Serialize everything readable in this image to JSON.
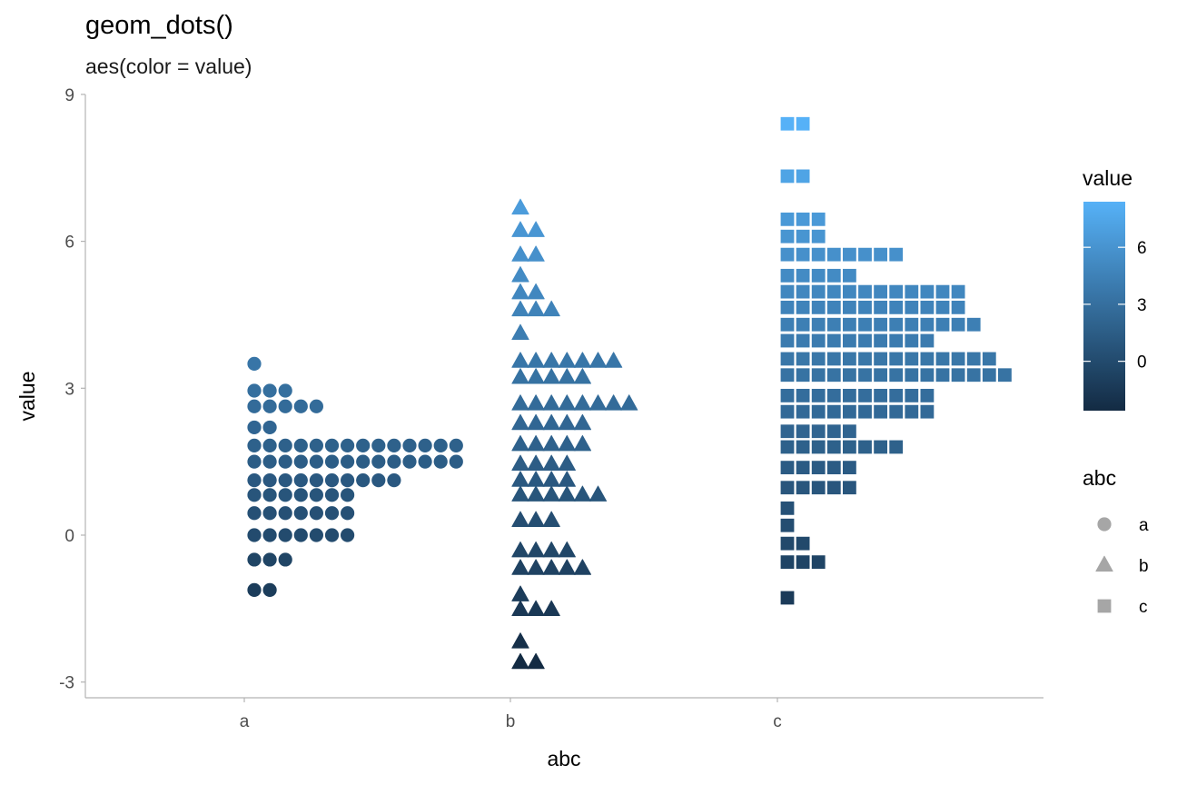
{
  "chart_data": {
    "type": "dotplot",
    "title": "geom_dots()",
    "subtitle": "aes(color = value)",
    "xlabel": "abc",
    "ylabel": "value",
    "categories": [
      "a",
      "b",
      "c"
    ],
    "ylim": [
      -3.3,
      9
    ],
    "yticks": [
      "9",
      "6",
      "3",
      "0",
      "-3"
    ],
    "ytick_values": [
      9,
      6,
      3,
      0,
      -3
    ],
    "grid": false,
    "color_scale": {
      "title": "value",
      "ticks": [
        "6",
        "3",
        "0"
      ],
      "tick_values": [
        6,
        3,
        0
      ],
      "range": [
        -2.6,
        8.4
      ],
      "low_color": "#132B43",
      "high_color": "#56B1F7"
    },
    "shape_legend": {
      "title": "abc",
      "items": [
        {
          "label": "a",
          "shape": "circle"
        },
        {
          "label": "b",
          "shape": "triangle"
        },
        {
          "label": "c",
          "shape": "square"
        }
      ],
      "color": "#a6a6a6"
    },
    "series": [
      {
        "category": "a",
        "shape": "circle",
        "bins": [
          {
            "y": 3.5,
            "count": 1
          },
          {
            "y": 2.95,
            "count": 3
          },
          {
            "y": 2.63,
            "count": 5
          },
          {
            "y": 2.2,
            "count": 2
          },
          {
            "y": 1.83,
            "count": 14
          },
          {
            "y": 1.5,
            "count": 14
          },
          {
            "y": 1.12,
            "count": 10
          },
          {
            "y": 0.82,
            "count": 7
          },
          {
            "y": 0.45,
            "count": 7
          },
          {
            "y": 0.0,
            "count": 7
          },
          {
            "y": -0.5,
            "count": 3
          },
          {
            "y": -1.12,
            "count": 2
          }
        ]
      },
      {
        "category": "b",
        "shape": "triangle",
        "bins": [
          {
            "y": 6.68,
            "count": 1
          },
          {
            "y": 6.22,
            "count": 2
          },
          {
            "y": 5.72,
            "count": 2
          },
          {
            "y": 5.3,
            "count": 1
          },
          {
            "y": 4.95,
            "count": 2
          },
          {
            "y": 4.6,
            "count": 3
          },
          {
            "y": 4.12,
            "count": 1
          },
          {
            "y": 3.55,
            "count": 7
          },
          {
            "y": 3.22,
            "count": 5
          },
          {
            "y": 2.68,
            "count": 8
          },
          {
            "y": 2.28,
            "count": 5
          },
          {
            "y": 1.85,
            "count": 5
          },
          {
            "y": 1.45,
            "count": 4
          },
          {
            "y": 1.12,
            "count": 4
          },
          {
            "y": 0.82,
            "count": 6
          },
          {
            "y": 0.3,
            "count": 3
          },
          {
            "y": -0.32,
            "count": 4
          },
          {
            "y": -0.68,
            "count": 5
          },
          {
            "y": -1.22,
            "count": 1
          },
          {
            "y": -1.52,
            "count": 3
          },
          {
            "y": -2.18,
            "count": 1
          },
          {
            "y": -2.6,
            "count": 2
          }
        ]
      },
      {
        "category": "c",
        "shape": "square",
        "bins": [
          {
            "y": 8.4,
            "count": 2
          },
          {
            "y": 7.33,
            "count": 2
          },
          {
            "y": 6.45,
            "count": 3
          },
          {
            "y": 6.1,
            "count": 3
          },
          {
            "y": 5.73,
            "count": 8
          },
          {
            "y": 5.3,
            "count": 5
          },
          {
            "y": 4.97,
            "count": 12
          },
          {
            "y": 4.65,
            "count": 12
          },
          {
            "y": 4.3,
            "count": 13
          },
          {
            "y": 3.97,
            "count": 10
          },
          {
            "y": 3.6,
            "count": 14
          },
          {
            "y": 3.27,
            "count": 15
          },
          {
            "y": 2.85,
            "count": 10
          },
          {
            "y": 2.52,
            "count": 10
          },
          {
            "y": 2.12,
            "count": 5
          },
          {
            "y": 1.8,
            "count": 8
          },
          {
            "y": 1.38,
            "count": 5
          },
          {
            "y": 0.97,
            "count": 5
          },
          {
            "y": 0.55,
            "count": 1
          },
          {
            "y": 0.2,
            "count": 1
          },
          {
            "y": -0.17,
            "count": 2
          },
          {
            "y": -0.55,
            "count": 3
          },
          {
            "y": -1.28,
            "count": 1
          }
        ]
      }
    ]
  }
}
